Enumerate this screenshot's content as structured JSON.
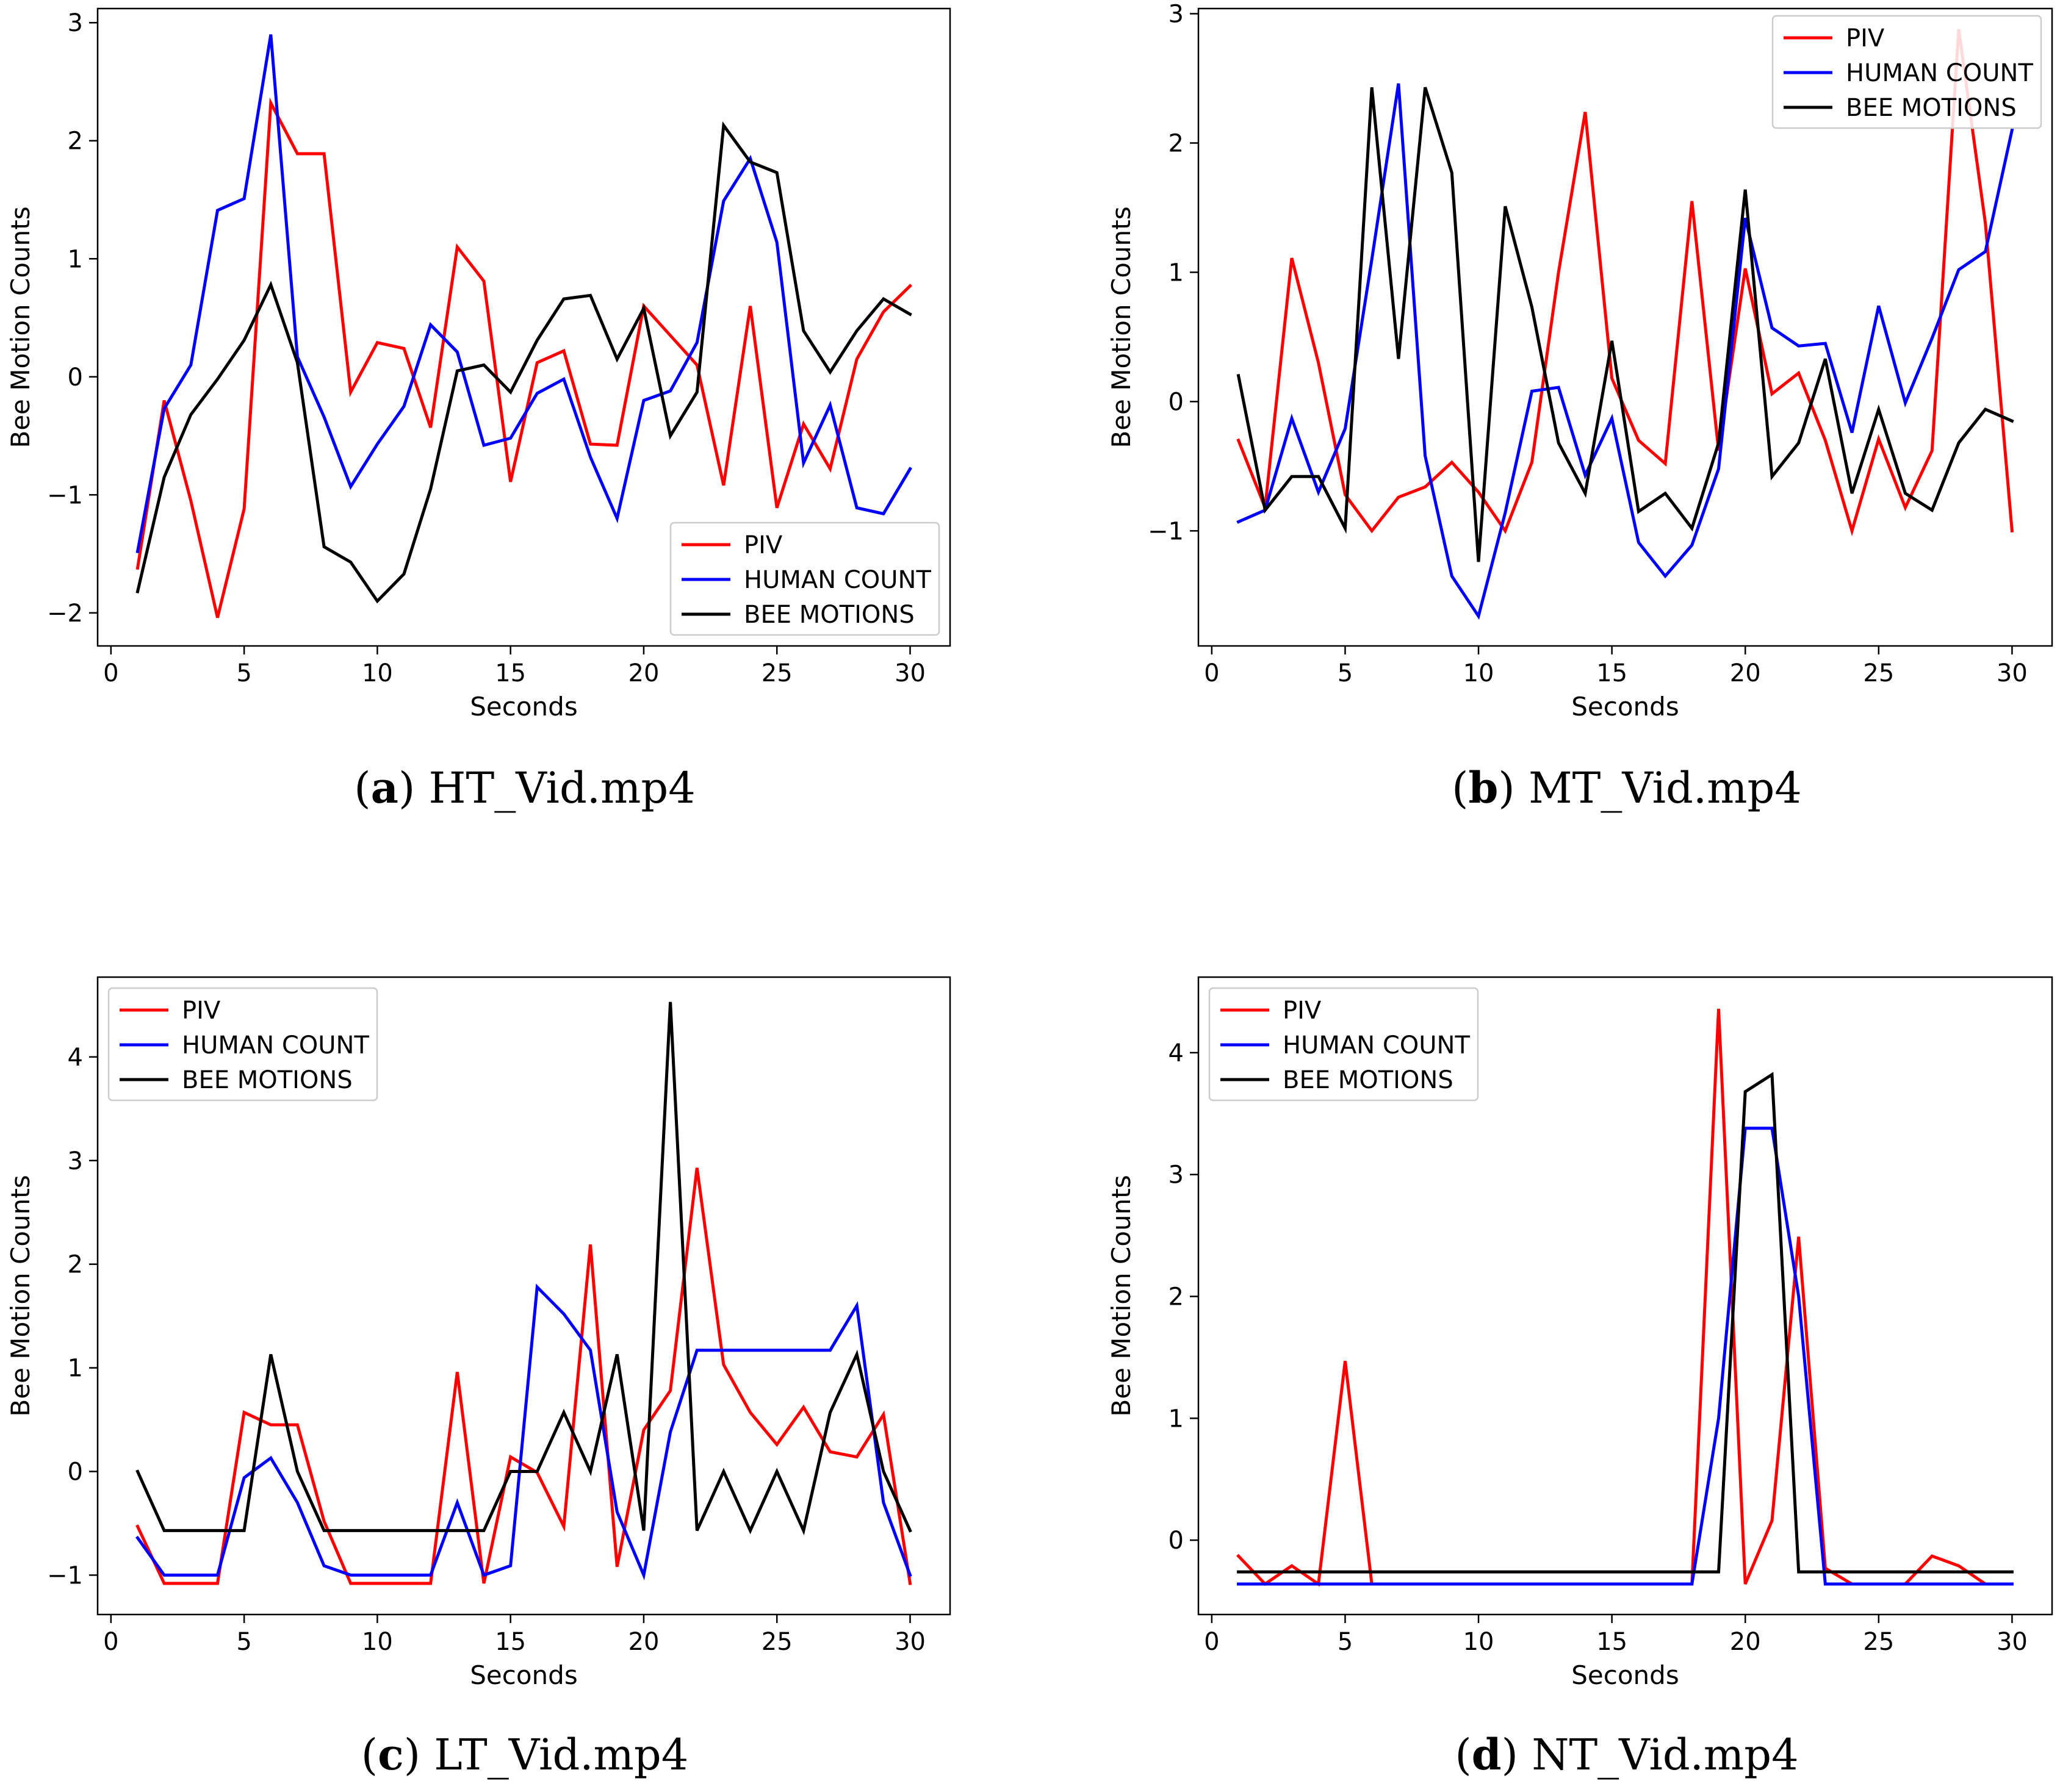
{
  "colors": {
    "piv": "#ff0000",
    "human": "#0000ff",
    "bee": "#000000"
  },
  "chart_data": [
    {
      "type": "line",
      "panel_letter": "a",
      "caption": "HT_Vid.mp4",
      "xlabel": "Seconds",
      "ylabel": "Bee Motion Counts",
      "xlim": [
        -0.5,
        31.5
      ],
      "ylim": [
        -2.28,
        3.12
      ],
      "xticks": [
        0,
        5,
        10,
        15,
        20,
        25,
        30
      ],
      "yticks": [
        -2,
        -1,
        0,
        1,
        2,
        3
      ],
      "legend_position": "lower-right",
      "x": [
        1,
        2,
        3,
        4,
        5,
        6,
        7,
        8,
        9,
        10,
        11,
        12,
        13,
        14,
        15,
        16,
        17,
        18,
        19,
        20,
        21,
        22,
        23,
        24,
        25,
        26,
        27,
        28,
        29,
        30
      ],
      "series": [
        {
          "name": "PIV",
          "color_key": "piv",
          "values": [
            -1.62,
            -0.2,
            -1.05,
            -2.04,
            -1.12,
            2.32,
            1.89,
            1.89,
            -0.13,
            0.29,
            0.24,
            -0.43,
            1.1,
            0.81,
            -0.89,
            0.12,
            0.22,
            -0.57,
            -0.58,
            0.6,
            0.35,
            0.1,
            -0.92,
            0.6,
            -1.11,
            -0.4,
            -0.78,
            0.15,
            0.55,
            0.77
          ]
        },
        {
          "name": "HUMAN COUNT",
          "color_key": "human",
          "values": [
            -1.48,
            -0.27,
            0.1,
            1.41,
            1.51,
            2.9,
            0.17,
            -0.34,
            -0.93,
            -0.57,
            -0.25,
            0.44,
            0.21,
            -0.58,
            -0.52,
            -0.14,
            -0.02,
            -0.68,
            -1.2,
            -0.2,
            -0.12,
            0.29,
            1.49,
            1.85,
            1.14,
            -0.73,
            -0.24,
            -1.11,
            -1.16,
            -0.78
          ]
        },
        {
          "name": "BEE MOTIONS",
          "color_key": "bee",
          "values": [
            -1.82,
            -0.85,
            -0.32,
            -0.02,
            0.31,
            0.78,
            0.12,
            -1.44,
            -1.57,
            -1.9,
            -1.67,
            -0.95,
            0.05,
            0.1,
            -0.13,
            0.31,
            0.66,
            0.69,
            0.15,
            0.58,
            -0.5,
            -0.13,
            2.13,
            1.82,
            1.73,
            0.39,
            0.04,
            0.39,
            0.66,
            0.53
          ]
        }
      ]
    },
    {
      "type": "line",
      "panel_letter": "b",
      "caption": "MT_Vid.mp4",
      "xlabel": "Seconds",
      "ylabel": "Bee Motion Counts",
      "xlim": [
        -0.5,
        31.5
      ],
      "ylim": [
        -1.89,
        3.04
      ],
      "xticks": [
        0,
        5,
        10,
        15,
        20,
        25,
        30
      ],
      "yticks": [
        -1,
        0,
        1,
        2,
        3
      ],
      "legend_position": "upper-right",
      "x": [
        1,
        2,
        3,
        4,
        5,
        6,
        7,
        8,
        9,
        10,
        11,
        12,
        13,
        14,
        15,
        16,
        17,
        18,
        19,
        20,
        21,
        22,
        23,
        24,
        25,
        26,
        27,
        28,
        29,
        30
      ],
      "series": [
        {
          "name": "PIV",
          "color_key": "piv",
          "values": [
            -0.3,
            -0.82,
            1.11,
            0.3,
            -0.72,
            -1.0,
            -0.74,
            -0.66,
            -0.47,
            -0.7,
            -1.0,
            -0.47,
            1.0,
            2.24,
            0.18,
            -0.3,
            -0.48,
            1.55,
            -0.38,
            1.03,
            0.06,
            0.22,
            -0.3,
            -1.0,
            -0.29,
            -0.82,
            -0.38,
            2.88,
            1.38,
            -1.0
          ]
        },
        {
          "name": "HUMAN COUNT",
          "color_key": "human",
          "values": [
            -0.93,
            -0.84,
            -0.13,
            -0.7,
            -0.21,
            1.1,
            2.46,
            -0.42,
            -1.35,
            -1.66,
            -0.86,
            0.08,
            0.11,
            -0.57,
            -0.13,
            -1.09,
            -1.35,
            -1.11,
            -0.52,
            1.42,
            0.57,
            0.43,
            0.45,
            -0.24,
            0.74,
            -0.01,
            0.49,
            1.02,
            1.16,
            2.1
          ]
        },
        {
          "name": "BEE MOTIONS",
          "color_key": "bee",
          "values": [
            0.2,
            -0.84,
            -0.58,
            -0.58,
            -0.98,
            2.43,
            0.33,
            2.43,
            1.77,
            -1.24,
            1.51,
            0.73,
            -0.32,
            -0.71,
            0.47,
            -0.85,
            -0.71,
            -0.98,
            -0.32,
            1.64,
            -0.58,
            -0.32,
            0.33,
            -0.71,
            -0.06,
            -0.71,
            -0.84,
            -0.32,
            -0.06,
            -0.15
          ]
        }
      ]
    },
    {
      "type": "line",
      "panel_letter": "c",
      "caption": "LT_Vid.mp4",
      "xlabel": "Seconds",
      "ylabel": "Bee Motion Counts",
      "xlim": [
        -0.5,
        31.5
      ],
      "ylim": [
        -1.38,
        4.77
      ],
      "xticks": [
        0,
        5,
        10,
        15,
        20,
        25,
        30
      ],
      "yticks": [
        -1,
        0,
        1,
        2,
        3,
        4
      ],
      "legend_position": "upper-left",
      "x": [
        1,
        2,
        3,
        4,
        5,
        6,
        7,
        8,
        9,
        10,
        11,
        12,
        13,
        14,
        15,
        16,
        17,
        18,
        19,
        20,
        21,
        22,
        23,
        24,
        25,
        26,
        27,
        28,
        29,
        30
      ],
      "series": [
        {
          "name": "PIV",
          "color_key": "piv",
          "values": [
            -0.53,
            -1.08,
            -1.08,
            -1.08,
            0.57,
            0.45,
            0.45,
            -0.48,
            -1.08,
            -1.08,
            -1.08,
            -1.08,
            0.96,
            -1.08,
            0.14,
            -0.01,
            -0.53,
            2.19,
            -0.92,
            0.4,
            0.78,
            2.93,
            1.03,
            0.57,
            0.26,
            0.62,
            0.19,
            0.14,
            0.55,
            -1.08
          ]
        },
        {
          "name": "HUMAN COUNT",
          "color_key": "human",
          "values": [
            -0.64,
            -1.0,
            -1.0,
            -1.0,
            -0.06,
            0.13,
            -0.3,
            -0.91,
            -1.0,
            -1.0,
            -1.0,
            -1.0,
            -0.3,
            -1.0,
            -0.91,
            1.78,
            1.52,
            1.17,
            -0.39,
            -1.0,
            0.38,
            1.17,
            1.17,
            1.17,
            1.17,
            1.17,
            1.17,
            1.6,
            -0.3,
            -1.0
          ]
        },
        {
          "name": "BEE MOTIONS",
          "color_key": "bee",
          "values": [
            0.0,
            -0.57,
            -0.57,
            -0.57,
            -0.57,
            1.13,
            0.0,
            -0.57,
            -0.57,
            -0.57,
            -0.57,
            -0.57,
            -0.57,
            -0.57,
            0.0,
            0.0,
            0.57,
            0.0,
            1.13,
            -0.57,
            4.53,
            -0.57,
            0.0,
            -0.57,
            0.0,
            -0.57,
            0.57,
            1.13,
            0.0,
            -0.57
          ]
        }
      ]
    },
    {
      "type": "line",
      "panel_letter": "d",
      "caption": "NT_Vid.mp4",
      "xlabel": "Seconds",
      "ylabel": "Bee Motion Counts",
      "xlim": [
        -0.5,
        31.5
      ],
      "ylim": [
        -0.61,
        4.62
      ],
      "xticks": [
        0,
        5,
        10,
        15,
        20,
        25,
        30
      ],
      "yticks": [
        0,
        1,
        2,
        3,
        4
      ],
      "legend_position": "upper-left",
      "x": [
        1,
        2,
        3,
        4,
        5,
        6,
        7,
        8,
        9,
        10,
        11,
        12,
        13,
        14,
        15,
        16,
        17,
        18,
        19,
        20,
        21,
        22,
        23,
        24,
        25,
        26,
        27,
        28,
        29,
        30
      ],
      "series": [
        {
          "name": "PIV",
          "color_key": "piv",
          "values": [
            -0.13,
            -0.36,
            -0.21,
            -0.36,
            1.47,
            -0.36,
            -0.36,
            -0.36,
            -0.36,
            -0.36,
            -0.36,
            -0.36,
            -0.36,
            -0.36,
            -0.36,
            -0.36,
            -0.36,
            -0.36,
            4.36,
            -0.36,
            0.16,
            2.49,
            -0.23,
            -0.36,
            -0.36,
            -0.36,
            -0.13,
            -0.21,
            -0.36,
            -0.36
          ]
        },
        {
          "name": "HUMAN COUNT",
          "color_key": "human",
          "values": [
            -0.36,
            -0.36,
            -0.36,
            -0.36,
            -0.36,
            -0.36,
            -0.36,
            -0.36,
            -0.36,
            -0.36,
            -0.36,
            -0.36,
            -0.36,
            -0.36,
            -0.36,
            -0.36,
            -0.36,
            -0.36,
            1.0,
            3.38,
            3.38,
            2.0,
            -0.36,
            -0.36,
            -0.36,
            -0.36,
            -0.36,
            -0.36,
            -0.36,
            -0.36
          ]
        },
        {
          "name": "BEE MOTIONS",
          "color_key": "bee",
          "values": [
            -0.26,
            -0.26,
            -0.26,
            -0.26,
            -0.26,
            -0.26,
            -0.26,
            -0.26,
            -0.26,
            -0.26,
            -0.26,
            -0.26,
            -0.26,
            -0.26,
            -0.26,
            -0.26,
            -0.26,
            -0.26,
            -0.26,
            3.68,
            3.82,
            -0.26,
            -0.26,
            -0.26,
            -0.26,
            -0.26,
            -0.26,
            -0.26,
            -0.26,
            -0.26
          ]
        }
      ]
    }
  ]
}
